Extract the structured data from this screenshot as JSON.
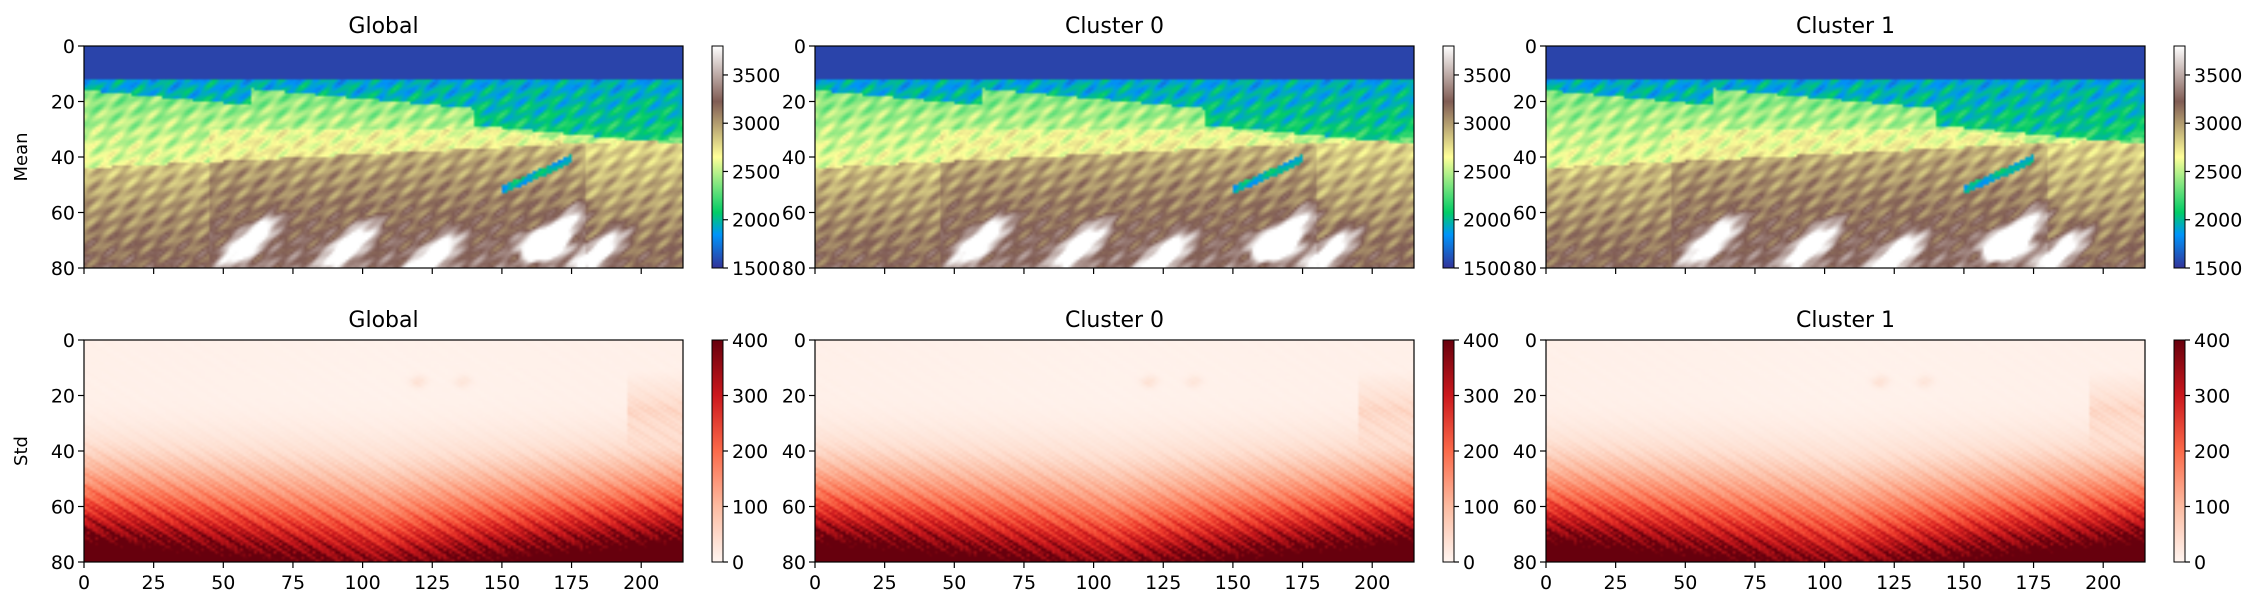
{
  "chart_data": [
    {
      "type": "heatmap",
      "title": "Global",
      "ylabel": "Mean",
      "row": "mean",
      "colormap": "terrain",
      "xlim": [
        0,
        215
      ],
      "ylim": [
        80,
        0
      ],
      "xticks": [
        0,
        25,
        50,
        75,
        100,
        125,
        150,
        175,
        200
      ],
      "yticks": [
        0,
        20,
        40,
        60,
        80
      ],
      "colorbar": {
        "range": [
          1500,
          3800
        ],
        "ticks": [
          1500,
          2000,
          2500,
          3000,
          3500
        ]
      }
    },
    {
      "type": "heatmap",
      "title": "Cluster 0",
      "ylabel": "",
      "row": "mean",
      "colormap": "terrain",
      "xlim": [
        0,
        215
      ],
      "ylim": [
        80,
        0
      ],
      "xticks": [
        0,
        25,
        50,
        75,
        100,
        125,
        150,
        175,
        200
      ],
      "yticks": [
        0,
        20,
        40,
        60,
        80
      ],
      "colorbar": {
        "range": [
          1500,
          3800
        ],
        "ticks": [
          1500,
          2000,
          2500,
          3000,
          3500
        ]
      }
    },
    {
      "type": "heatmap",
      "title": "Cluster 1",
      "ylabel": "",
      "row": "mean",
      "colormap": "terrain",
      "xlim": [
        0,
        215
      ],
      "ylim": [
        80,
        0
      ],
      "xticks": [
        0,
        25,
        50,
        75,
        100,
        125,
        150,
        175,
        200
      ],
      "yticks": [
        0,
        20,
        40,
        60,
        80
      ],
      "colorbar": {
        "range": [
          1500,
          3800
        ],
        "ticks": [
          1500,
          2000,
          2500,
          3000,
          3500
        ]
      }
    },
    {
      "type": "heatmap",
      "title": "Global",
      "ylabel": "Std",
      "row": "std",
      "colormap": "Reds",
      "xlim": [
        0,
        215
      ],
      "ylim": [
        80,
        0
      ],
      "xticks": [
        0,
        25,
        50,
        75,
        100,
        125,
        150,
        175,
        200
      ],
      "yticks": [
        0,
        20,
        40,
        60,
        80
      ],
      "colorbar": {
        "range": [
          0,
          400
        ],
        "ticks": [
          0,
          100,
          200,
          300,
          400
        ]
      }
    },
    {
      "type": "heatmap",
      "title": "Cluster 0",
      "ylabel": "",
      "row": "std",
      "colormap": "Reds",
      "xlim": [
        0,
        215
      ],
      "ylim": [
        80,
        0
      ],
      "xticks": [
        0,
        25,
        50,
        75,
        100,
        125,
        150,
        175,
        200
      ],
      "yticks": [
        0,
        20,
        40,
        60,
        80
      ],
      "colorbar": {
        "range": [
          0,
          400
        ],
        "ticks": [
          0,
          100,
          200,
          300,
          400
        ]
      }
    },
    {
      "type": "heatmap",
      "title": "Cluster 1",
      "ylabel": "",
      "row": "std",
      "colormap": "Reds",
      "xlim": [
        0,
        215
      ],
      "ylim": [
        80,
        0
      ],
      "xticks": [
        0,
        25,
        50,
        75,
        100,
        125,
        150,
        175,
        200
      ],
      "yticks": [
        0,
        20,
        40,
        60,
        80
      ],
      "colorbar": {
        "range": [
          0,
          400
        ],
        "ticks": [
          0,
          100,
          200,
          300,
          400
        ]
      }
    }
  ]
}
